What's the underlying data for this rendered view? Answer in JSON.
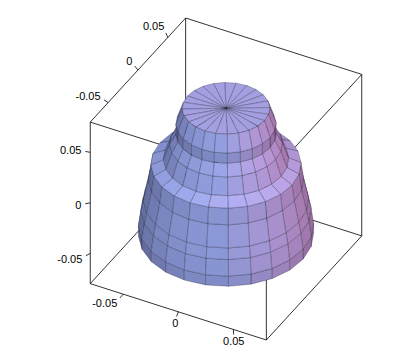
{
  "chart_data": {
    "type": "surface3d",
    "xlim": [
      -0.08,
      0.08
    ],
    "ylim": [
      -0.08,
      0.08
    ],
    "zlim": [
      -0.08,
      0.08
    ],
    "xticks": [
      -0.05,
      0,
      0.05
    ],
    "yticks": [
      -0.05,
      0,
      0.05
    ],
    "zticks": [
      -0.05,
      0,
      0.05
    ],
    "profile": {
      "z": [
        0.07,
        0.07,
        0.055,
        0.045,
        0.035,
        0.02,
        0.015,
        0.0,
        -0.02,
        -0.03,
        -0.045,
        -0.055,
        -0.06,
        -0.06
      ],
      "r": [
        0,
        0.035,
        0.04,
        0.04,
        0.045,
        0.05,
        0.06,
        0.062,
        0.066,
        0.068,
        0.07,
        0.07,
        0.06,
        0
      ]
    },
    "color": "#a8b8ec"
  }
}
